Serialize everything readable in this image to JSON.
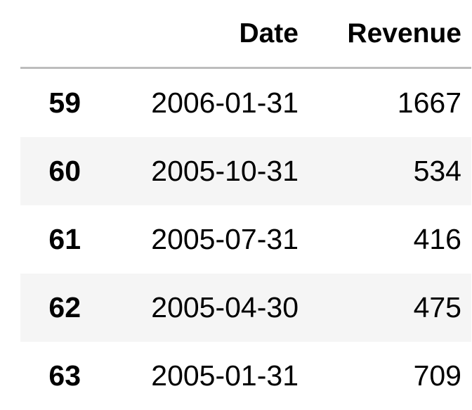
{
  "table": {
    "columns": {
      "index": "",
      "date": "Date",
      "revenue": "Revenue"
    },
    "rows": [
      {
        "index": "59",
        "date": "2006-01-31",
        "revenue": "1667"
      },
      {
        "index": "60",
        "date": "2005-10-31",
        "revenue": "534"
      },
      {
        "index": "61",
        "date": "2005-07-31",
        "revenue": "416"
      },
      {
        "index": "62",
        "date": "2005-04-30",
        "revenue": "475"
      },
      {
        "index": "63",
        "date": "2005-01-31",
        "revenue": "709"
      }
    ]
  }
}
